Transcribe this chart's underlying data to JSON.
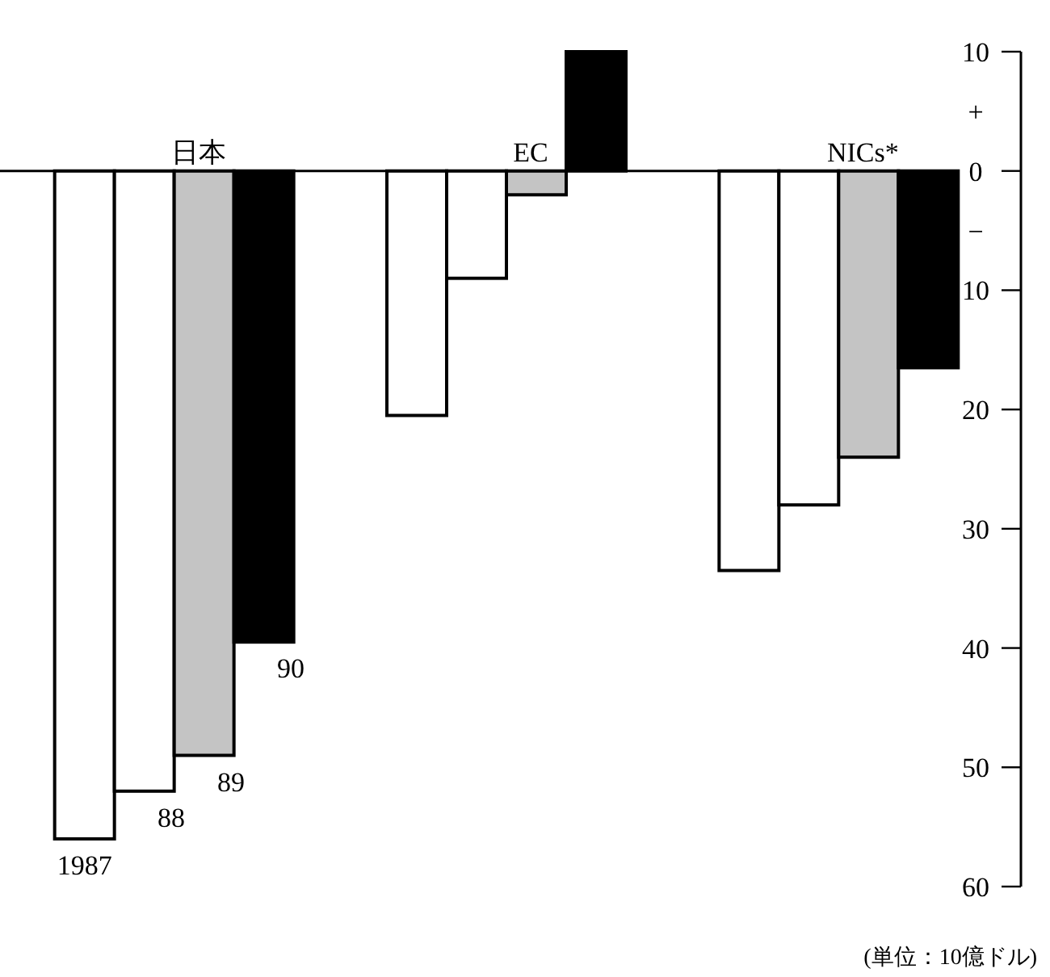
{
  "chart_data": {
    "type": "bar",
    "categories": [
      "日本",
      "EC",
      "NICs*"
    ],
    "series": [
      {
        "name": "1987",
        "color": "#ffffff",
        "values": [
          -56,
          -20.5,
          -33.5
        ]
      },
      {
        "name": "88",
        "color": "#ffffff",
        "values": [
          -52,
          -9,
          -28
        ]
      },
      {
        "name": "89",
        "color": "#c4c4c4",
        "values": [
          -49,
          -2,
          -24
        ]
      },
      {
        "name": "90",
        "color": "#000000",
        "values": [
          -39.5,
          10,
          -16.5
        ]
      }
    ],
    "ylim": [
      -60,
      10
    ],
    "yticks": [
      10,
      {
        "value": 5,
        "label": "+"
      },
      0,
      {
        "value": -5,
        "label": "−"
      },
      {
        "value": -10,
        "label": "10"
      },
      {
        "value": -20,
        "label": "20"
      },
      {
        "value": -30,
        "label": "30"
      },
      {
        "value": -40,
        "label": "40"
      },
      {
        "value": -50,
        "label": "50"
      },
      {
        "value": -60,
        "label": "60"
      }
    ],
    "annotations": [
      "(単位：10億ドル)"
    ],
    "grid": false
  }
}
